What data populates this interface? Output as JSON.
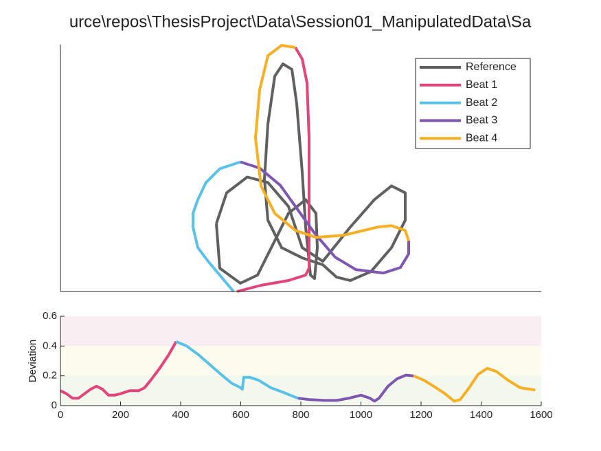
{
  "chart_data": [
    {
      "type": "line",
      "title": "urce\\repos\\ThesisProject\\Data\\Session01_ManipulatedData\\Sa",
      "xlim": [
        0,
        700
      ],
      "ylim": [
        0,
        360
      ],
      "legend": "northeast",
      "series": [
        {
          "name": "Reference",
          "color": "#606060",
          "x": [
            227,
            232,
            262,
            287,
            307,
            332,
            357,
            372,
            374,
            370,
            364,
            357,
            352,
            344,
            337,
            324,
            312,
            302,
            297,
            302,
            322,
            352,
            382,
            402,
            422,
            452,
            482,
            502,
            502,
            482,
            457,
            422,
            382,
            352,
            332,
            302,
            272,
            242,
            227
          ],
          "values": [
            99,
            34,
            12,
            24,
            64,
            114,
            134,
            114,
            64,
            19,
            24,
            94,
            174,
            274,
            324,
            332,
            314,
            244,
            164,
            104,
            64,
            49,
            39,
            21,
            16,
            29,
            64,
            104,
            144,
            154,
            134,
            94,
            44,
            64,
            124,
            159,
            167,
            144,
            99
          ]
        },
        {
          "name": "Beat 1",
          "color": "#e0457b",
          "x": [
            342,
            352,
            359,
            362,
            362,
            362,
            357,
            332,
            292,
            257
          ],
          "values": [
            356,
            339,
            304,
            224,
            124,
            34,
            24,
            16,
            9,
            0
          ]
        },
        {
          "name": "Beat 2",
          "color": "#5bc2e7",
          "x": [
            252,
            237,
            215,
            200,
            193,
            193,
            200,
            212,
            232,
            262
          ],
          "values": [
            0,
            18,
            44,
            64,
            94,
            114,
            134,
            159,
            179,
            189
          ]
        },
        {
          "name": "Beat 3",
          "color": "#7e57b0",
          "x": [
            262,
            290,
            320,
            345,
            370,
            400,
            430,
            470,
            495,
            507,
            507
          ],
          "values": [
            189,
            180,
            155,
            120,
            85,
            50,
            32,
            27,
            35,
            55,
            74
          ]
        },
        {
          "name": "Beat 4",
          "color": "#f6b026",
          "x": [
            507,
            502,
            482,
            462,
            412,
            372,
            342,
            312,
            292,
            284,
            290,
            302,
            322,
            342
          ],
          "values": [
            74,
            89,
            96,
            94,
            82,
            79,
            89,
            114,
            154,
            224,
            294,
            344,
            359,
            356
          ]
        }
      ]
    },
    {
      "type": "line",
      "y_label": "Deviation",
      "xlim": [
        0,
        1600
      ],
      "ylim": [
        0,
        0.6
      ],
      "xticks": [
        0,
        200,
        400,
        600,
        800,
        1000,
        1200,
        1400,
        1600
      ],
      "yticks": [
        0,
        0.2,
        0.4,
        0.6
      ],
      "bands": [
        {
          "from": 0,
          "to": 0.2,
          "color": "#f3f8ef"
        },
        {
          "from": 0.2,
          "to": 0.4,
          "color": "#fdfcee"
        },
        {
          "from": 0.4,
          "to": 0.6,
          "color": "#f9eef1"
        }
      ],
      "series": [
        {
          "color": "#e0457b",
          "x": [
            0,
            20,
            40,
            60,
            80,
            100,
            120,
            140,
            160,
            180,
            200,
            230,
            260,
            280,
            300,
            330,
            360,
            385
          ],
          "values": [
            0.1,
            0.08,
            0.05,
            0.05,
            0.08,
            0.11,
            0.13,
            0.11,
            0.07,
            0.07,
            0.08,
            0.1,
            0.1,
            0.12,
            0.17,
            0.25,
            0.34,
            0.43
          ]
        },
        {
          "color": "#5bc2e7",
          "x": [
            385,
            420,
            460,
            500,
            540,
            570,
            600,
            605,
            610,
            630,
            660,
            700,
            740,
            790
          ],
          "values": [
            0.43,
            0.4,
            0.34,
            0.27,
            0.2,
            0.15,
            0.12,
            0.11,
            0.19,
            0.19,
            0.17,
            0.12,
            0.09,
            0.05
          ]
        },
        {
          "color": "#7e57b0",
          "x": [
            790,
            830,
            880,
            920,
            960,
            1000,
            1030,
            1045,
            1060,
            1090,
            1120,
            1150,
            1175
          ],
          "values": [
            0.05,
            0.04,
            0.035,
            0.035,
            0.05,
            0.07,
            0.05,
            0.03,
            0.05,
            0.13,
            0.18,
            0.205,
            0.2
          ]
        },
        {
          "color": "#f6b026",
          "x": [
            1175,
            1210,
            1250,
            1280,
            1310,
            1330,
            1360,
            1390,
            1420,
            1450,
            1490,
            1530,
            1580
          ],
          "values": [
            0.2,
            0.17,
            0.12,
            0.08,
            0.03,
            0.04,
            0.12,
            0.21,
            0.25,
            0.23,
            0.17,
            0.12,
            0.105
          ]
        }
      ]
    }
  ]
}
